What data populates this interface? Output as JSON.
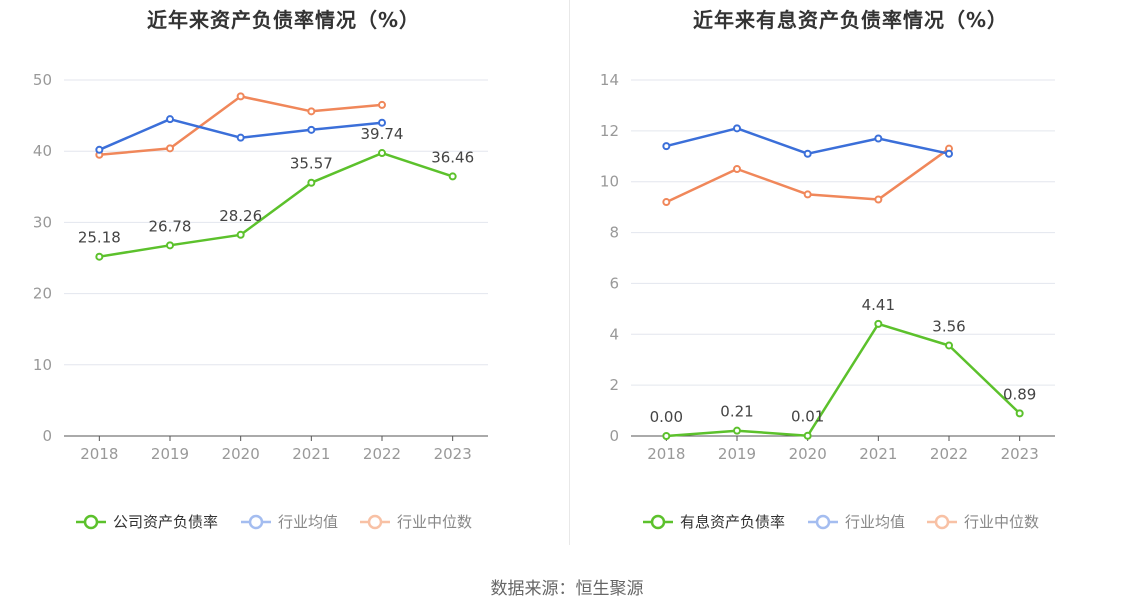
{
  "source_label": "数据来源：恒生聚源",
  "chart_data": [
    {
      "type": "line",
      "title": "近年来资产负债率情况（%）",
      "categories": [
        "2018",
        "2019",
        "2020",
        "2021",
        "2022",
        "2023"
      ],
      "ylim": [
        0,
        50
      ],
      "yticks": [
        0,
        10,
        20,
        30,
        40,
        50
      ],
      "legend_position": "bottom",
      "series": [
        {
          "name": "公司资产负债率",
          "color": "#5cc12c",
          "values": [
            25.18,
            26.78,
            28.26,
            35.57,
            39.74,
            36.46
          ],
          "labels": [
            "25.18",
            "26.78",
            "28.26",
            "35.57",
            "39.74",
            "36.46"
          ]
        },
        {
          "name": "行业均值",
          "color": "#3b6fd9",
          "values": [
            40.2,
            44.5,
            41.9,
            43.0,
            44.0,
            null
          ]
        },
        {
          "name": "行业中位数",
          "color": "#f0875a",
          "values": [
            39.5,
            40.4,
            47.7,
            45.6,
            46.5,
            null
          ]
        }
      ]
    },
    {
      "type": "line",
      "title": "近年来有息资产负债率情况（%）",
      "categories": [
        "2018",
        "2019",
        "2020",
        "2021",
        "2022",
        "2023"
      ],
      "ylim": [
        0,
        14
      ],
      "yticks": [
        0,
        2,
        4,
        6,
        8,
        10,
        12,
        14
      ],
      "legend_position": "bottom",
      "series": [
        {
          "name": "有息资产负债率",
          "color": "#5cc12c",
          "values": [
            0.0,
            0.21,
            0.01,
            4.41,
            3.56,
            0.89
          ],
          "labels": [
            "0.00",
            "0.21",
            "0.01",
            "4.41",
            "3.56",
            "0.89"
          ]
        },
        {
          "name": "行业均值",
          "color": "#3b6fd9",
          "values": [
            11.4,
            12.1,
            11.1,
            11.7,
            11.1,
            null
          ]
        },
        {
          "name": "行业中位数",
          "color": "#f0875a",
          "values": [
            9.2,
            10.5,
            9.5,
            9.3,
            11.3,
            null
          ]
        }
      ]
    }
  ]
}
